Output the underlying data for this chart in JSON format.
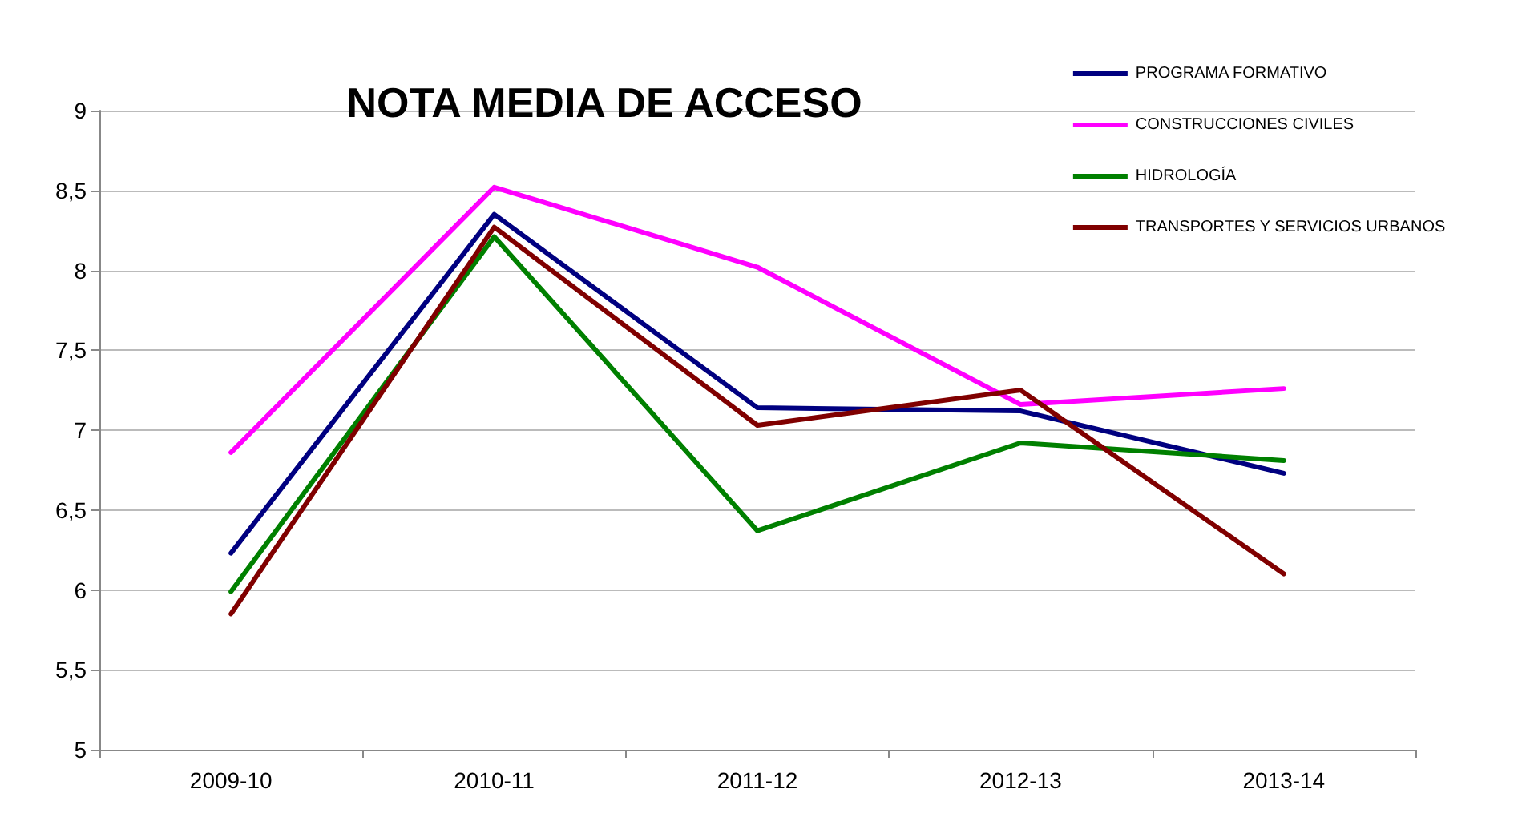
{
  "chart_data": {
    "type": "line",
    "title": "NOTA MEDIA DE ACCESO",
    "categories": [
      "2009-10",
      "2010-11",
      "2011-12",
      "2012-13",
      "2013-14"
    ],
    "series": [
      {
        "name": "PROGRAMA FORMATIVO",
        "color": "#000080",
        "values": [
          6.23,
          8.35,
          7.14,
          7.12,
          6.73
        ]
      },
      {
        "name": "CONSTRUCCIONES CIVILES",
        "color": "#ff00ff",
        "values": [
          6.86,
          8.52,
          8.02,
          7.16,
          7.26
        ]
      },
      {
        "name": "HIDROLOGÍA",
        "color": "#008000",
        "values": [
          5.99,
          8.21,
          6.37,
          6.92,
          6.81
        ]
      },
      {
        "name": "TRANSPORTES Y SERVICIOS URBANOS",
        "color": "#800000",
        "values": [
          5.85,
          8.27,
          7.03,
          7.25,
          6.1
        ]
      }
    ],
    "ylim": [
      5,
      9
    ],
    "yticks": [
      5,
      {
        "value": 5.5,
        "label": "5,5"
      },
      6,
      {
        "value": 6.5,
        "label": "6,5"
      },
      7,
      {
        "value": 7.5,
        "label": "7,5"
      },
      8,
      {
        "value": 8.5,
        "label": "8,5"
      },
      9
    ],
    "grid": "y",
    "legend": "top right",
    "marker": "none",
    "line_style": "solid"
  }
}
